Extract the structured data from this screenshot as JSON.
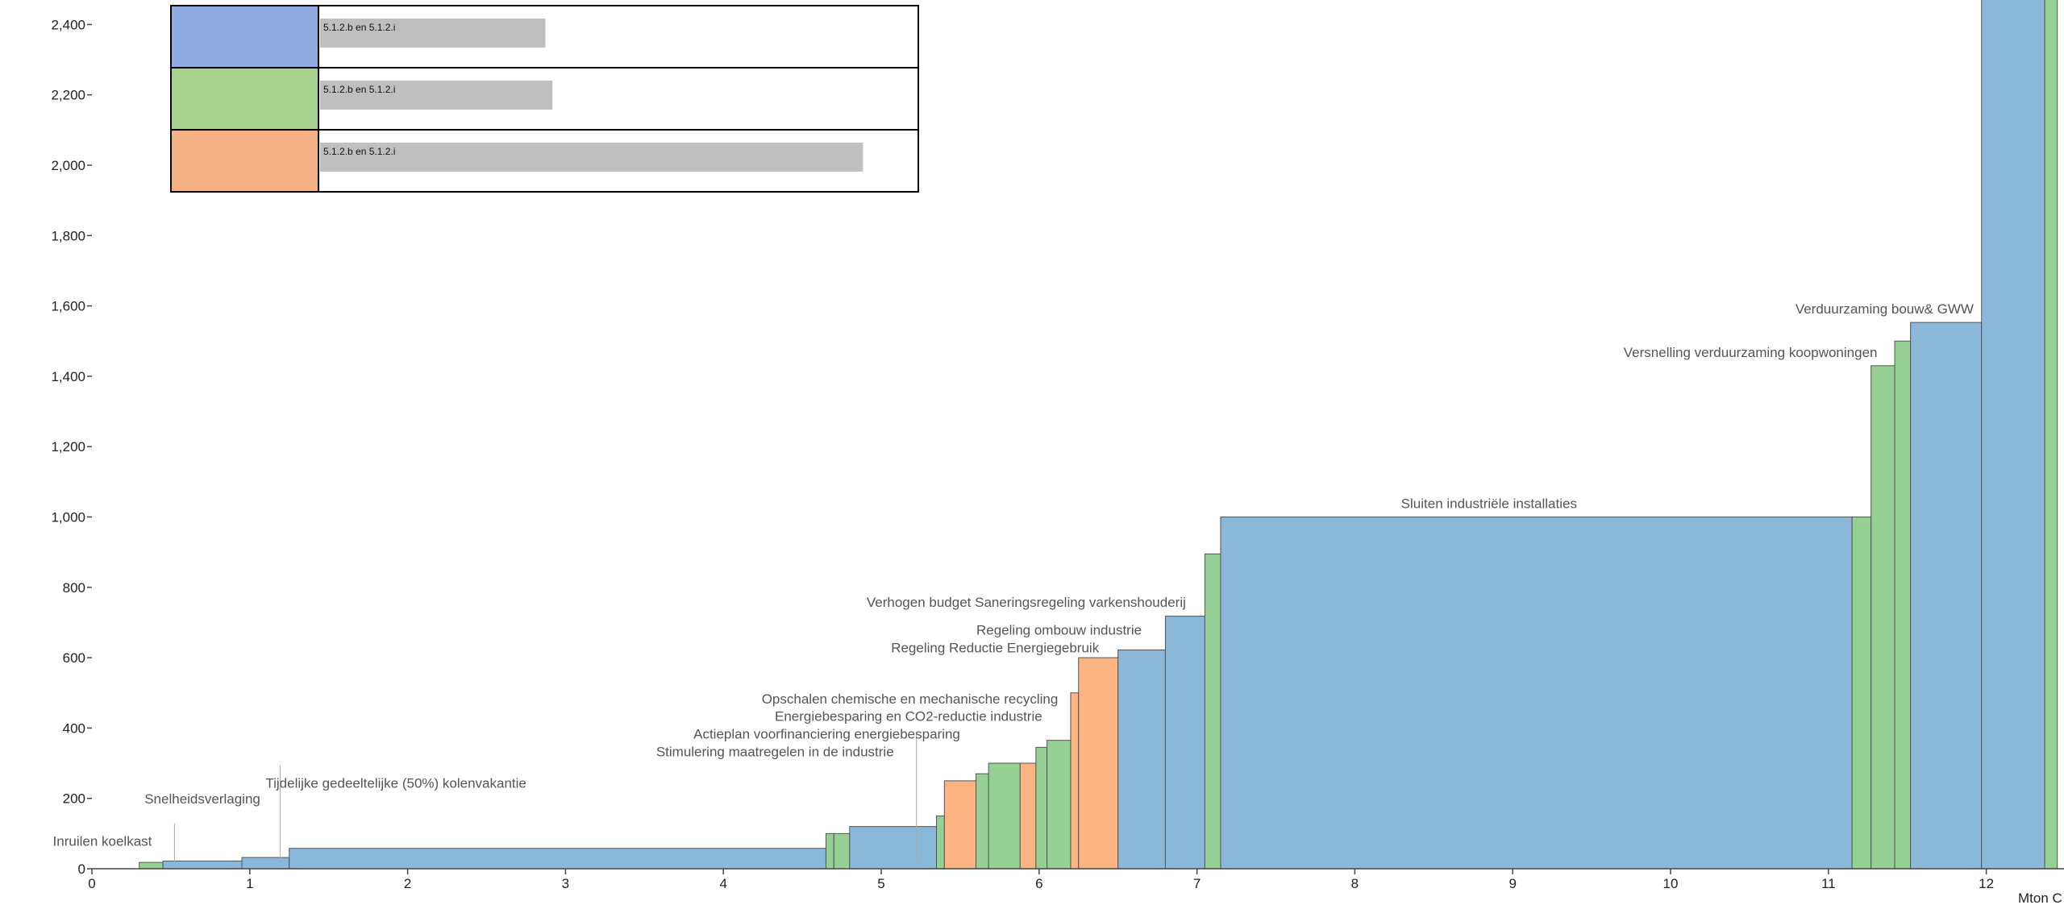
{
  "chart_data": {
    "type": "bar",
    "variant": "marginal-abatement-cost-curve",
    "title": "",
    "xlabel": "Mton C",
    "ylabel": "",
    "xlim": [
      0,
      12.5
    ],
    "ylim": [
      0,
      2500
    ],
    "x_ticks": [
      0,
      1,
      2,
      3,
      4,
      5,
      6,
      7,
      8,
      9,
      10,
      11,
      12
    ],
    "y_ticks": [
      0,
      200,
      400,
      600,
      800,
      1000,
      1200,
      1400,
      1600,
      1800,
      2000,
      2200,
      2400
    ],
    "grid": false,
    "colors": {
      "blue": "#8bb8d9",
      "green": "#97d095",
      "orange": "#fbb482"
    },
    "legend": {
      "position": "top-left",
      "entries": [
        {
          "color": "#8fabe2",
          "label": "5.1.2.b en 5.1.2.i",
          "bar_fraction": 0.386
        },
        {
          "color": "#a9d18e",
          "label": "5.1.2.b en 5.1.2.i",
          "bar_fraction": 0.398
        },
        {
          "color": "#f4b183",
          "label": "5.1.2.b en 5.1.2.i",
          "bar_fraction": 0.93
        }
      ]
    },
    "bars": [
      {
        "x0": 0.3,
        "x1": 0.45,
        "y": 18,
        "color": "green"
      },
      {
        "x0": 0.45,
        "x1": 0.95,
        "y": 22,
        "color": "blue"
      },
      {
        "x0": 0.95,
        "x1": 1.25,
        "y": 32,
        "color": "blue"
      },
      {
        "x0": 1.25,
        "x1": 4.65,
        "y": 58,
        "color": "blue"
      },
      {
        "x0": 4.65,
        "x1": 4.7,
        "y": 100,
        "color": "green"
      },
      {
        "x0": 4.7,
        "x1": 4.8,
        "y": 100,
        "color": "green"
      },
      {
        "x0": 4.8,
        "x1": 5.35,
        "y": 120,
        "color": "blue"
      },
      {
        "x0": 5.35,
        "x1": 5.4,
        "y": 150,
        "color": "green"
      },
      {
        "x0": 5.4,
        "x1": 5.6,
        "y": 250,
        "color": "orange"
      },
      {
        "x0": 5.6,
        "x1": 5.68,
        "y": 270,
        "color": "green"
      },
      {
        "x0": 5.68,
        "x1": 5.88,
        "y": 300,
        "color": "green"
      },
      {
        "x0": 5.88,
        "x1": 5.98,
        "y": 300,
        "color": "orange"
      },
      {
        "x0": 5.98,
        "x1": 6.05,
        "y": 345,
        "color": "green"
      },
      {
        "x0": 6.05,
        "x1": 6.2,
        "y": 365,
        "color": "green"
      },
      {
        "x0": 6.2,
        "x1": 6.25,
        "y": 500,
        "color": "orange"
      },
      {
        "x0": 6.25,
        "x1": 6.5,
        "y": 600,
        "color": "orange"
      },
      {
        "x0": 6.5,
        "x1": 6.8,
        "y": 622,
        "color": "blue"
      },
      {
        "x0": 6.8,
        "x1": 7.05,
        "y": 718,
        "color": "blue"
      },
      {
        "x0": 7.05,
        "x1": 7.15,
        "y": 895,
        "color": "green"
      },
      {
        "x0": 7.15,
        "x1": 11.15,
        "y": 1000,
        "color": "blue"
      },
      {
        "x0": 11.15,
        "x1": 11.27,
        "y": 1000,
        "color": "green"
      },
      {
        "x0": 11.27,
        "x1": 11.42,
        "y": 1430,
        "color": "green"
      },
      {
        "x0": 11.42,
        "x1": 11.52,
        "y": 1500,
        "color": "green"
      },
      {
        "x0": 11.52,
        "x1": 11.97,
        "y": 1553,
        "color": "blue"
      },
      {
        "x0": 11.97,
        "x1": 12.37,
        "y": 2550,
        "color": "blue"
      },
      {
        "x0": 12.37,
        "x1": 12.45,
        "y": 2550,
        "color": "green"
      }
    ],
    "annotations": [
      {
        "text": "Inruilen koelkast",
        "x": 0.38,
        "y": 65,
        "leader": true,
        "anchor": "end"
      },
      {
        "text": "Snelheidsverlaging",
        "x": 0.7,
        "y": 185,
        "leader": false,
        "anchor": "middle"
      },
      {
        "text": "Tijdelijke gedeeltelijke (50%) kolenvakantie",
        "x": 1.1,
        "y": 230,
        "leader": true,
        "anchor": "start"
      },
      {
        "text": "Stimulering maatregelen in de industrie",
        "x": 5.08,
        "y": 320,
        "leader": true,
        "anchor": "end"
      },
      {
        "text": "Actieplan voorfinanciering energiebesparing",
        "x": 5.5,
        "y": 370,
        "leader": false,
        "anchor": "end"
      },
      {
        "text": "Energiebesparing en CO2-reductie industrie",
        "x": 6.02,
        "y": 420,
        "leader": false,
        "anchor": "end"
      },
      {
        "text": "Opschalen chemische en mechanische recycling",
        "x": 6.12,
        "y": 470,
        "leader": false,
        "anchor": "end"
      },
      {
        "text": "Regeling Reductie Energiegebruik",
        "x": 6.38,
        "y": 615,
        "leader": false,
        "anchor": "end"
      },
      {
        "text": "Regeling ombouw industrie",
        "x": 6.65,
        "y": 665,
        "leader": false,
        "anchor": "end"
      },
      {
        "text": "Verhogen budget Saneringsregeling varkenshouderij",
        "x": 6.93,
        "y": 745,
        "leader": false,
        "anchor": "end"
      },
      {
        "text": "Sluiten industriële installaties",
        "x": 8.85,
        "y": 1025,
        "leader": false,
        "anchor": "middle"
      },
      {
        "text": "Versnelling verduurzaming koopwoningen",
        "x": 11.31,
        "y": 1455,
        "leader": false,
        "anchor": "end"
      },
      {
        "text": "Verduurzaming bouw& GWW",
        "x": 11.92,
        "y": 1578,
        "leader": false,
        "anchor": "end"
      }
    ]
  }
}
